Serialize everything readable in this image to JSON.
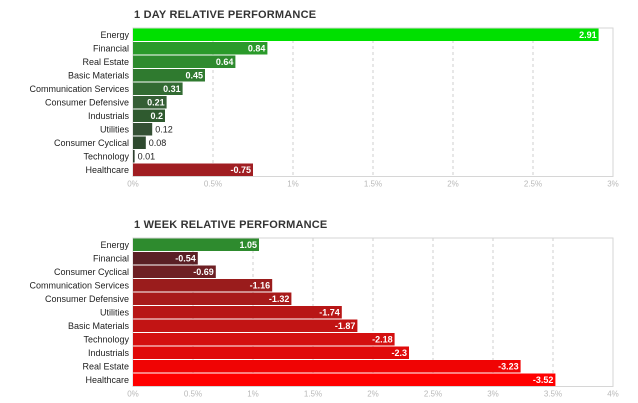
{
  "chart_data": [
    {
      "type": "bar",
      "orientation": "horizontal",
      "title": "1 DAY RELATIVE PERFORMANCE",
      "categories": [
        "Energy",
        "Financial",
        "Real Estate",
        "Basic Materials",
        "Communication Services",
        "Consumer Defensive",
        "Industrials",
        "Utilities",
        "Consumer Cyclical",
        "Technology",
        "Healthcare"
      ],
      "values": [
        2.91,
        0.84,
        0.64,
        0.45,
        0.31,
        0.21,
        0.2,
        0.12,
        0.08,
        0.01,
        -0.75
      ],
      "value_labels": [
        "2.91",
        "0.84",
        "0.64",
        "0.45",
        "0.31",
        "0.21",
        "0.2",
        "0.12",
        "0.08",
        "0.01",
        "-0.75"
      ],
      "xlim": [
        0,
        3
      ],
      "xticks": [
        0,
        0.5,
        1,
        1.5,
        2,
        2.5,
        3
      ],
      "xtick_labels": [
        "0%",
        "0.5%",
        "1%",
        "1.5%",
        "2%",
        "2.5%",
        "3%"
      ],
      "grid": true,
      "colors": [
        "#00e000",
        "#2a9a2a",
        "#2e8b2e",
        "#2f7a2f",
        "#336b33",
        "#355e35",
        "#2f5a2f",
        "#345034",
        "#2f4a2f",
        "#2c3e2c",
        "#a01e22"
      ]
    },
    {
      "type": "bar",
      "orientation": "horizontal",
      "title": "1 WEEK RELATIVE PERFORMANCE",
      "categories": [
        "Energy",
        "Financial",
        "Consumer Cyclical",
        "Communication Services",
        "Consumer Defensive",
        "Utilities",
        "Basic Materials",
        "Technology",
        "Industrials",
        "Real Estate",
        "Healthcare"
      ],
      "values": [
        1.05,
        -0.54,
        -0.69,
        -1.16,
        -1.32,
        -1.74,
        -1.87,
        -2.18,
        -2.3,
        -3.23,
        -3.52
      ],
      "value_labels": [
        "1.05",
        "-0.54",
        "-0.69",
        "-1.16",
        "-1.32",
        "-1.74",
        "-1.87",
        "-2.18",
        "-2.3",
        "-3.23",
        "-3.52"
      ],
      "xlim": [
        0,
        4
      ],
      "xticks": [
        0,
        0.5,
        1,
        1.5,
        2,
        2.5,
        3,
        3.5,
        4
      ],
      "xtick_labels": [
        "0%",
        "0.5%",
        "1%",
        "1.5%",
        "2%",
        "2.5%",
        "3%",
        "3.5%",
        "4%"
      ],
      "grid": true,
      "colors": [
        "#2e8b2e",
        "#5a2025",
        "#6e2024",
        "#9a1c1c",
        "#a81a1a",
        "#b81616",
        "#c21414",
        "#d41010",
        "#e00a0a",
        "#f00404",
        "#ff0000"
      ]
    }
  ]
}
